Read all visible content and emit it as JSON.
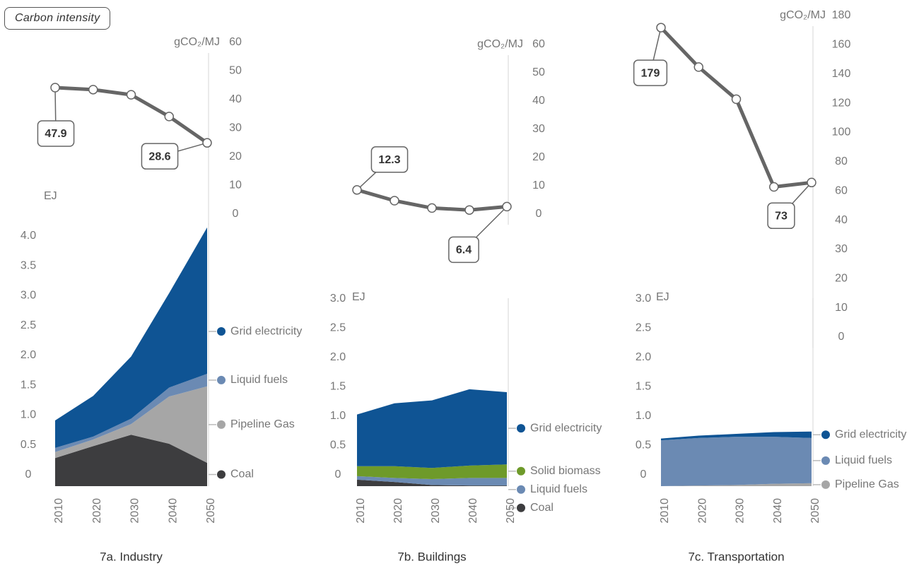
{
  "badge": "Carbon intensity",
  "chart_data": [
    {
      "type": "line",
      "y_label": "gCO₂/MJ",
      "x": [
        2010,
        2020,
        2030,
        2040,
        2050
      ],
      "xlim": [
        2010,
        2050
      ],
      "values": [
        47.9,
        47.2,
        45.4,
        37.8,
        28.6
      ],
      "value_labels": [
        "47.9",
        null,
        null,
        null,
        "28.6"
      ],
      "color": "#666666",
      "ylim": [
        0,
        60
      ],
      "yticks": [
        0,
        10,
        20,
        30,
        40,
        50,
        60
      ]
    },
    {
      "type": "area",
      "title": "7a. Industry",
      "y_label": "EJ",
      "x": [
        2010,
        2020,
        2030,
        2040,
        2050
      ],
      "xlim": [
        2010,
        2050
      ],
      "xticks": [
        2010,
        2020,
        2030,
        2040,
        2050
      ],
      "ylim": [
        0,
        4.4
      ],
      "yticks": [
        0,
        0.5,
        {
          "value": 1,
          "label": "1.0"
        },
        1.5,
        {
          "value": 2,
          "label": "2.0"
        },
        2.5,
        {
          "value": 3,
          "label": "3.0"
        },
        3.5,
        {
          "value": 4,
          "label": "4.0"
        }
      ],
      "series": [
        {
          "name": "Coal",
          "color": "#3d3d3f",
          "values": [
            0.47,
            0.67,
            0.86,
            0.71,
            0.39
          ]
        },
        {
          "name": "Pipeline Gas",
          "color": "#a6a6a6",
          "values": [
            0.1,
            0.11,
            0.18,
            0.79,
            1.28
          ]
        },
        {
          "name": "Liquid fuels",
          "color": "#6b8ab3",
          "values": [
            0.07,
            0.05,
            0.09,
            0.15,
            0.21
          ]
        },
        {
          "name": "Grid electricity",
          "color": "#0f5494",
          "values": [
            0.46,
            0.68,
            1.04,
            1.58,
            2.45
          ]
        }
      ]
    },
    {
      "type": "line",
      "y_label": "gCO₂/MJ",
      "x": [
        2010,
        2020,
        2030,
        2040,
        2050
      ],
      "xlim": [
        2010,
        2050
      ],
      "values": [
        12.3,
        8.5,
        5.9,
        5.2,
        6.4
      ],
      "value_labels": [
        "12.3",
        null,
        null,
        null,
        "6.4"
      ],
      "color": "#666666",
      "ylim": [
        0,
        60
      ],
      "yticks": [
        0,
        10,
        20,
        30,
        40,
        50,
        60
      ]
    },
    {
      "type": "area",
      "title": "7b. Buildings",
      "y_label": "EJ",
      "x": [
        2010,
        2020,
        2030,
        2040,
        2050
      ],
      "xlim": [
        2010,
        2050
      ],
      "xticks": [
        2010,
        2020,
        2030,
        2040,
        2050
      ],
      "ylim": [
        0,
        3.2
      ],
      "yticks": [
        0,
        0.5,
        {
          "value": 1,
          "label": "1.0"
        },
        1.5,
        {
          "value": 2,
          "label": "2.0"
        },
        2.5,
        {
          "value": 3,
          "label": "3.0"
        }
      ],
      "series": [
        {
          "name": "Coal",
          "color": "#3d3d3f",
          "values": [
            0.11,
            0.07,
            0.02,
            0.01,
            0.01
          ]
        },
        {
          "name": "Liquid fuels",
          "color": "#6b8ab3",
          "values": [
            0.06,
            0.07,
            0.1,
            0.13,
            0.13
          ]
        },
        {
          "name": "Solid biomass",
          "color": "#6e9a2a",
          "values": [
            0.17,
            0.2,
            0.19,
            0.21,
            0.23
          ]
        },
        {
          "name": "Grid electricity",
          "color": "#0f5494",
          "values": [
            0.88,
            1.07,
            1.15,
            1.3,
            1.23
          ]
        }
      ]
    },
    {
      "type": "line",
      "y_label": "gCO₂/MJ",
      "x": [
        2010,
        2020,
        2030,
        2040,
        2050
      ],
      "xlim": [
        2010,
        2050
      ],
      "values": [
        179,
        152,
        130,
        70,
        73
      ],
      "value_labels": [
        "179",
        null,
        null,
        null,
        "73"
      ],
      "color": "#666666",
      "ylim": [
        0,
        180
      ],
      "yticks": [
        0,
        10,
        20,
        30,
        40,
        60,
        80,
        100,
        120,
        140,
        160,
        180
      ]
    },
    {
      "type": "area",
      "title": "7c. Transportation",
      "y_label": "EJ",
      "x": [
        2010,
        2020,
        2030,
        2040,
        2050
      ],
      "xlim": [
        2010,
        2050
      ],
      "xticks": [
        2010,
        2020,
        2030,
        2040,
        2050
      ],
      "ylim": [
        0,
        3.2
      ],
      "yticks": [
        0,
        0.5,
        {
          "value": 1,
          "label": "1.0"
        },
        1.5,
        {
          "value": 2,
          "label": "2.0"
        },
        2.5,
        {
          "value": 3,
          "label": "3.0"
        }
      ],
      "series": [
        {
          "name": "Pipeline Gas",
          "color": "#a6a6a6",
          "values": [
            0,
            0.01,
            0.02,
            0.04,
            0.05
          ]
        },
        {
          "name": "Liquid fuels",
          "color": "#6b8ab3",
          "values": [
            0.78,
            0.81,
            0.82,
            0.8,
            0.77
          ]
        },
        {
          "name": "Grid electricity",
          "color": "#0f5494",
          "values": [
            0.03,
            0.04,
            0.05,
            0.08,
            0.11
          ]
        }
      ]
    }
  ]
}
